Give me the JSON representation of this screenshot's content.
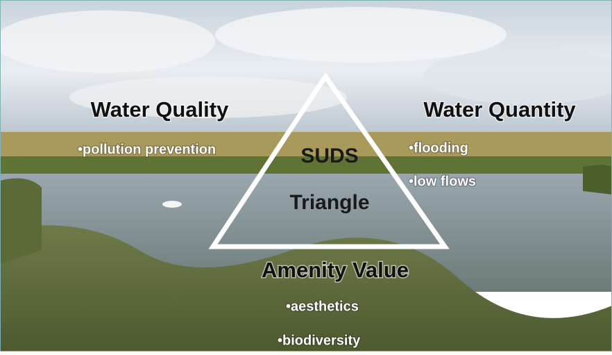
{
  "center": {
    "title": "SUDS",
    "subtitle": "Triangle"
  },
  "corners": [
    {
      "heading": "Water Quality",
      "items": [
        "•pollution prevention"
      ]
    },
    {
      "heading": "Water Quantity",
      "items": [
        "•flooding",
        "•low flows"
      ]
    },
    {
      "heading": "Amenity Value",
      "items": [
        "•aesthetics",
        "•biodiversity"
      ]
    }
  ]
}
